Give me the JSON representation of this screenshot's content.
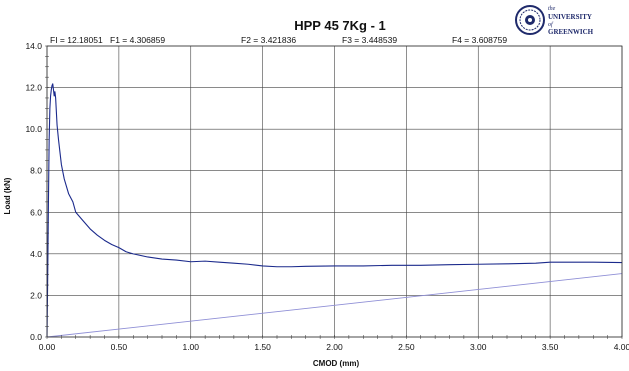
{
  "chart_data": {
    "type": "line",
    "title": "HPP 45   7Kg - 1",
    "annotations": [
      "FI = 12.18051",
      "F1 = 4.306859",
      "F2 = 3.421836",
      "F3 = 3.448539",
      "F4 = 3.608759"
    ],
    "xlabel": "CMOD (mm)",
    "ylabel": "Load (kN)",
    "xlim": [
      0,
      4.0
    ],
    "ylim": [
      0,
      14.0
    ],
    "xticks": [
      "0.00",
      "0.50",
      "1.00",
      "1.50",
      "2.00",
      "2.50",
      "3.00",
      "3.50",
      "4.00"
    ],
    "yticks": [
      "0.0",
      "2.0",
      "4.0",
      "6.0",
      "8.0",
      "10.0",
      "12.0",
      "14.0"
    ],
    "grid": true,
    "series": [
      {
        "color": "#1b2a8c",
        "x": [
          0.0,
          0.005,
          0.01,
          0.015,
          0.02,
          0.025,
          0.03,
          0.035,
          0.04,
          0.045,
          0.05,
          0.055,
          0.06,
          0.07,
          0.08,
          0.09,
          0.1,
          0.12,
          0.15,
          0.18,
          0.2,
          0.25,
          0.3,
          0.35,
          0.4,
          0.45,
          0.5,
          0.55,
          0.6,
          0.7,
          0.8,
          0.9,
          1.0,
          1.1,
          1.2,
          1.3,
          1.4,
          1.5,
          1.6,
          1.7,
          1.8,
          2.0,
          2.2,
          2.4,
          2.6,
          2.8,
          3.0,
          3.2,
          3.4,
          3.5,
          3.6,
          3.8,
          4.0
        ],
        "y": [
          0.0,
          3.0,
          6.5,
          9.5,
          11.0,
          11.6,
          11.9,
          12.1,
          12.18,
          11.9,
          11.6,
          11.8,
          11.5,
          10.2,
          9.5,
          8.9,
          8.3,
          7.6,
          6.9,
          6.5,
          6.0,
          5.6,
          5.2,
          4.9,
          4.65,
          4.45,
          4.3,
          4.1,
          4.0,
          3.85,
          3.75,
          3.7,
          3.62,
          3.65,
          3.6,
          3.55,
          3.5,
          3.42,
          3.38,
          3.38,
          3.4,
          3.42,
          3.42,
          3.45,
          3.45,
          3.48,
          3.5,
          3.52,
          3.55,
          3.6,
          3.6,
          3.6,
          3.58
        ]
      },
      {
        "color": "#8f8fd6",
        "x": [
          0.0,
          4.0
        ],
        "y": [
          0.0,
          3.05
        ]
      }
    ]
  },
  "logo": {
    "line1": "the",
    "line2": "UNIVERSITY",
    "line3": "of",
    "line4": "GREENWICH",
    "color": "#1f2a6b"
  }
}
